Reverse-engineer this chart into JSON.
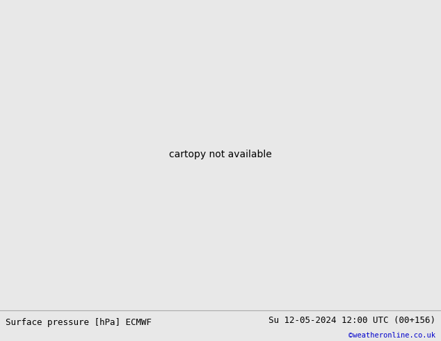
{
  "title_left": "Surface pressure [hPa] ECMWF",
  "title_right": "Su 12-05-2024 12:00 UTC (00+156)",
  "copyright": "©weatheronline.co.uk",
  "land_color": "#c8e6b0",
  "ocean_color": "#dce8f0",
  "border_color": "#888888",
  "footer_bg": "#e8e8e8",
  "map_bg": "#dce8f0",
  "title_fontsize": 9,
  "copyright_color": "#0000cc",
  "red_color": "#dd0000",
  "blue_color": "#0000cc",
  "black_color": "#000000",
  "fig_width": 6.34,
  "fig_height": 4.9,
  "dpi": 100,
  "lon_min": -20,
  "lon_max": 65,
  "lat_min": -50,
  "lat_max": 40
}
